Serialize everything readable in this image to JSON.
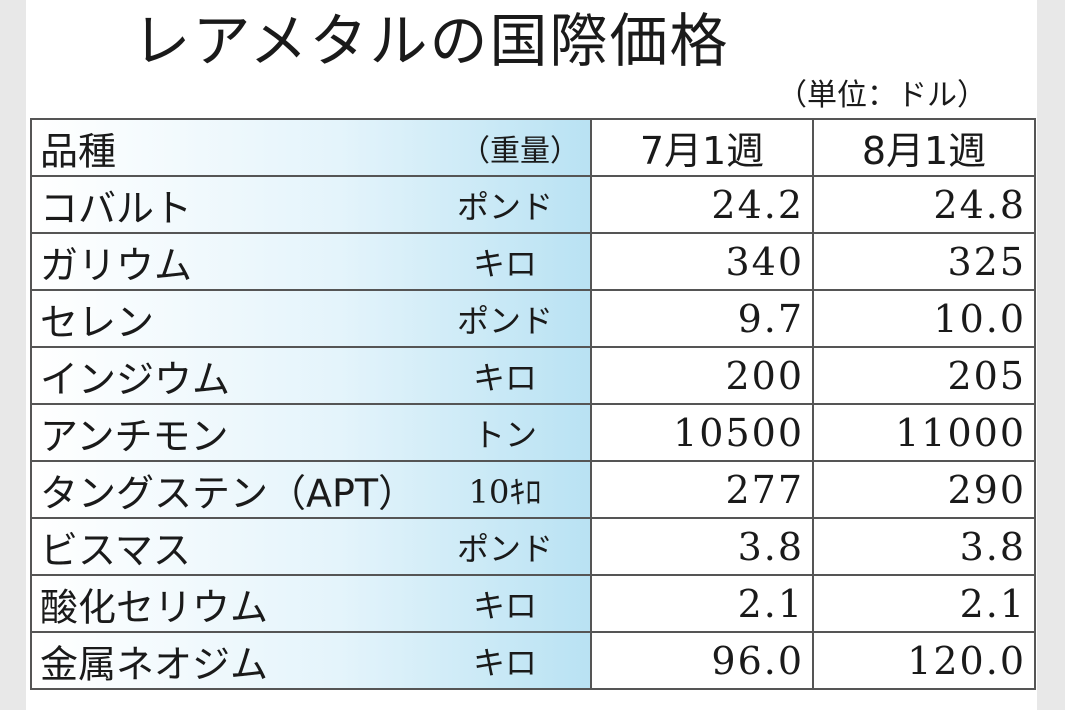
{
  "title": "レアメタルの国際価格",
  "unit_note": "（単位：ドル）",
  "header": {
    "item": "品種",
    "weight": "（重量）",
    "col1": "7月1週",
    "col2": "8月1週"
  },
  "rows": [
    {
      "name": "コバルト",
      "unit": "ポンド",
      "jul": "24.2",
      "aug": "24.8"
    },
    {
      "name": "ガリウム",
      "unit": "キロ",
      "jul": "340",
      "aug": "325"
    },
    {
      "name": "セレン",
      "unit": "ポンド",
      "jul": "9.7",
      "aug": "10.0"
    },
    {
      "name": "インジウム",
      "unit": "キロ",
      "jul": "200",
      "aug": "205"
    },
    {
      "name": "アンチモン",
      "unit": "トン",
      "jul": "10500",
      "aug": "11000"
    },
    {
      "name": "タングステン（APT）",
      "unit": "10ｷﾛ",
      "jul": "277",
      "aug": "290"
    },
    {
      "name": "ビスマス",
      "unit": "ポンド",
      "jul": "3.8",
      "aug": "3.8"
    },
    {
      "name": "酸化セリウム",
      "unit": "キロ",
      "jul": "2.1",
      "aug": "2.1"
    },
    {
      "name": "金属ネオジム",
      "unit": "キロ",
      "jul": "96.0",
      "aug": "120.0"
    }
  ]
}
